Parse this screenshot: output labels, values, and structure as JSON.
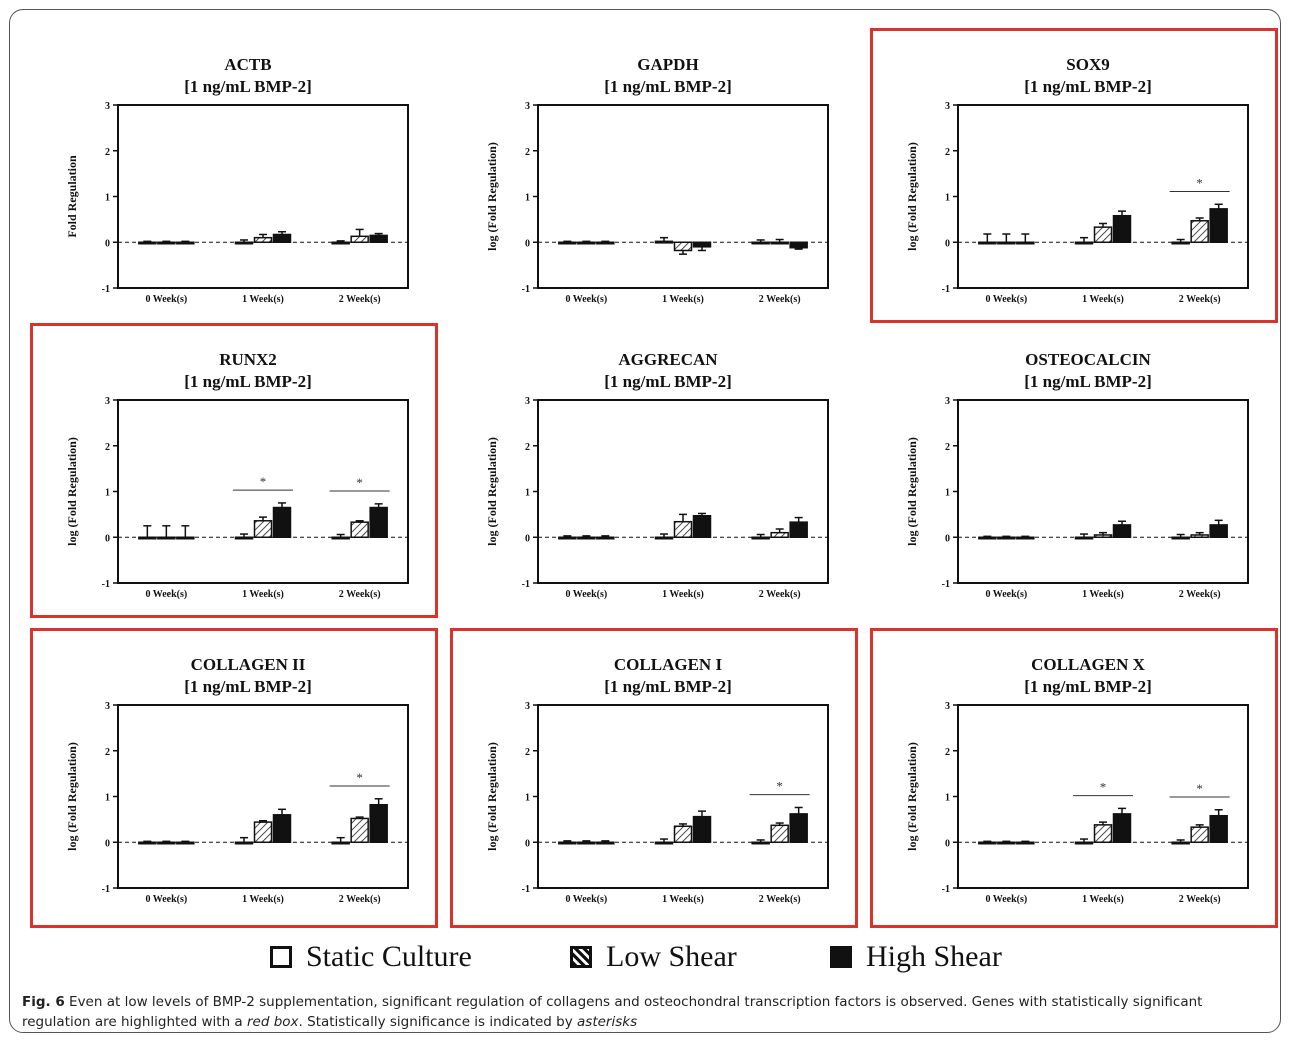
{
  "legend": {
    "items": [
      {
        "label": "Static Culture",
        "fill": "white"
      },
      {
        "label": "Low Shear",
        "fill": "hatch"
      },
      {
        "label": "High Shear",
        "fill": "black"
      }
    ]
  },
  "caption": {
    "fig_label": "Fig. 6",
    "text_1": " Even at low levels of BMP-2 supplementation, significant regulation of collagens and osteochondral transcription factors is observed. Genes with statistically significant regulation are highlighted with a ",
    "emph_1": "red box",
    "text_2": ". Statistically significance is indicated by ",
    "emph_2": "asterisks"
  },
  "colors": {
    "highlight": "#d9332b",
    "static": "#ffffff",
    "high": "#111111",
    "hatch": "#444444"
  },
  "chart_data": [
    {
      "type": "bar",
      "title": "ACTB",
      "subtitle": "[1 ng/mL BMP-2]",
      "ylabel": "Fold Regulation",
      "ylim": [
        -1,
        3
      ],
      "yticks": [
        -1,
        0,
        1,
        2,
        3
      ],
      "categories": [
        "0 Week(s)",
        "1 Week(s)",
        "2 Week(s)"
      ],
      "highlighted": false,
      "series": [
        {
          "name": "Static Culture",
          "values": [
            0,
            0,
            0
          ],
          "errors": [
            0.02,
            0.05,
            0.03
          ]
        },
        {
          "name": "Low Shear",
          "values": [
            0,
            0.1,
            0.13
          ],
          "errors": [
            0.02,
            0.07,
            0.15
          ]
        },
        {
          "name": "High Shear",
          "values": [
            0,
            0.17,
            0.15
          ],
          "errors": [
            0.02,
            0.06,
            0.04
          ]
        }
      ],
      "significance": []
    },
    {
      "type": "bar",
      "title": "GAPDH",
      "subtitle": "[1 ng/mL BMP-2]",
      "ylabel": "log (Fold Regulation)",
      "ylim": [
        -1,
        3
      ],
      "yticks": [
        -1,
        0,
        1,
        2,
        3
      ],
      "categories": [
        "0 Week(s)",
        "1 Week(s)",
        "2 Week(s)"
      ],
      "highlighted": false,
      "series": [
        {
          "name": "Static Culture",
          "values": [
            0,
            0.02,
            0
          ],
          "errors": [
            0.02,
            0.08,
            0.05
          ]
        },
        {
          "name": "Low Shear",
          "values": [
            0,
            -0.18,
            0
          ],
          "errors": [
            0.02,
            0.08,
            0.06
          ]
        },
        {
          "name": "High Shear",
          "values": [
            0,
            -0.1,
            -0.12
          ],
          "errors": [
            0.02,
            0.08,
            0.03
          ]
        }
      ],
      "significance": []
    },
    {
      "type": "bar",
      "title": "SOX9",
      "subtitle": "[1 ng/mL BMP-2]",
      "ylabel": "log (Fold Regulation)",
      "ylim": [
        -1,
        3
      ],
      "yticks": [
        -1,
        0,
        1,
        2,
        3
      ],
      "categories": [
        "0 Week(s)",
        "1 Week(s)",
        "2 Week(s)"
      ],
      "highlighted": true,
      "series": [
        {
          "name": "Static Culture",
          "values": [
            0,
            0,
            0
          ],
          "errors": [
            0.18,
            0.1,
            0.06
          ]
        },
        {
          "name": "Low Shear",
          "values": [
            0,
            0.33,
            0.47
          ],
          "errors": [
            0.18,
            0.08,
            0.06
          ]
        },
        {
          "name": "High Shear",
          "values": [
            0,
            0.58,
            0.73
          ],
          "errors": [
            0.18,
            0.1,
            0.1
          ]
        }
      ],
      "significance": [
        {
          "category": "2 Week(s)",
          "label": "*"
        }
      ]
    },
    {
      "type": "bar",
      "title": "RUNX2",
      "subtitle": "[1 ng/mL BMP-2]",
      "ylabel": "log (Fold Regulation)",
      "ylim": [
        -1,
        3
      ],
      "yticks": [
        -1,
        0,
        1,
        2,
        3
      ],
      "categories": [
        "0 Week(s)",
        "1 Week(s)",
        "2 Week(s)"
      ],
      "highlighted": true,
      "series": [
        {
          "name": "Static Culture",
          "values": [
            0,
            0,
            0
          ],
          "errors": [
            0.25,
            0.07,
            0.06
          ]
        },
        {
          "name": "Low Shear",
          "values": [
            0,
            0.36,
            0.33
          ],
          "errors": [
            0.25,
            0.08,
            0.03
          ]
        },
        {
          "name": "High Shear",
          "values": [
            0,
            0.65,
            0.65
          ],
          "errors": [
            0.25,
            0.1,
            0.08
          ]
        }
      ],
      "significance": [
        {
          "category": "1 Week(s)",
          "label": "*"
        },
        {
          "category": "2 Week(s)",
          "label": "*"
        }
      ]
    },
    {
      "type": "bar",
      "title": "AGGRECAN",
      "subtitle": "[1 ng/mL BMP-2]",
      "ylabel": "log (Fold Regulation)",
      "ylim": [
        -1,
        3
      ],
      "yticks": [
        -1,
        0,
        1,
        2,
        3
      ],
      "categories": [
        "0 Week(s)",
        "1 Week(s)",
        "2 Week(s)"
      ],
      "highlighted": false,
      "series": [
        {
          "name": "Static Culture",
          "values": [
            0,
            0,
            0
          ],
          "errors": [
            0.03,
            0.07,
            0.06
          ]
        },
        {
          "name": "Low Shear",
          "values": [
            0,
            0.34,
            0.1
          ],
          "errors": [
            0.03,
            0.16,
            0.08
          ]
        },
        {
          "name": "High Shear",
          "values": [
            0,
            0.47,
            0.33
          ],
          "errors": [
            0.03,
            0.05,
            0.1
          ]
        }
      ],
      "significance": []
    },
    {
      "type": "bar",
      "title": "OSTEOCALCIN",
      "subtitle": "[1 ng/mL BMP-2]",
      "ylabel": "log (Fold Regulation)",
      "ylim": [
        -1,
        3
      ],
      "yticks": [
        -1,
        0,
        1,
        2,
        3
      ],
      "categories": [
        "0 Week(s)",
        "1 Week(s)",
        "2 Week(s)"
      ],
      "highlighted": false,
      "series": [
        {
          "name": "Static Culture",
          "values": [
            0,
            0,
            0
          ],
          "errors": [
            0.02,
            0.07,
            0.06
          ]
        },
        {
          "name": "Low Shear",
          "values": [
            0,
            0.05,
            0.05
          ],
          "errors": [
            0.02,
            0.05,
            0.05
          ]
        },
        {
          "name": "High Shear",
          "values": [
            0,
            0.27,
            0.27
          ],
          "errors": [
            0.02,
            0.08,
            0.1
          ]
        }
      ],
      "significance": []
    },
    {
      "type": "bar",
      "title": "COLLAGEN II",
      "subtitle": "[1 ng/mL BMP-2]",
      "ylabel": "log (Fold Regulation)",
      "ylim": [
        -1,
        3
      ],
      "yticks": [
        -1,
        0,
        1,
        2,
        3
      ],
      "categories": [
        "0 Week(s)",
        "1 Week(s)",
        "2 Week(s)"
      ],
      "highlighted": true,
      "series": [
        {
          "name": "Static Culture",
          "values": [
            0,
            0,
            0
          ],
          "errors": [
            0.02,
            0.1,
            0.1
          ]
        },
        {
          "name": "Low Shear",
          "values": [
            0,
            0.44,
            0.52
          ],
          "errors": [
            0.02,
            0.03,
            0.03
          ]
        },
        {
          "name": "High Shear",
          "values": [
            0,
            0.6,
            0.82
          ],
          "errors": [
            0.02,
            0.12,
            0.13
          ]
        }
      ],
      "significance": [
        {
          "category": "2 Week(s)",
          "label": "*"
        }
      ]
    },
    {
      "type": "bar",
      "title": "COLLAGEN I",
      "subtitle": "[1 ng/mL BMP-2]",
      "ylabel": "log (Fold Regulation)",
      "ylim": [
        -1,
        3
      ],
      "yticks": [
        -1,
        0,
        1,
        2,
        3
      ],
      "categories": [
        "0 Week(s)",
        "1 Week(s)",
        "2 Week(s)"
      ],
      "highlighted": true,
      "series": [
        {
          "name": "Static Culture",
          "values": [
            0,
            0,
            0
          ],
          "errors": [
            0.03,
            0.07,
            0.05
          ]
        },
        {
          "name": "Low Shear",
          "values": [
            0,
            0.35,
            0.37
          ],
          "errors": [
            0.03,
            0.05,
            0.05
          ]
        },
        {
          "name": "High Shear",
          "values": [
            0,
            0.56,
            0.62
          ],
          "errors": [
            0.03,
            0.12,
            0.14
          ]
        }
      ],
      "significance": [
        {
          "category": "2 Week(s)",
          "label": "*"
        }
      ]
    },
    {
      "type": "bar",
      "title": "COLLAGEN X",
      "subtitle": "[1 ng/mL BMP-2]",
      "ylabel": "log (Fold Regulation)",
      "ylim": [
        -1,
        3
      ],
      "yticks": [
        -1,
        0,
        1,
        2,
        3
      ],
      "categories": [
        "0 Week(s)",
        "1 Week(s)",
        "2 Week(s)"
      ],
      "highlighted": true,
      "series": [
        {
          "name": "Static Culture",
          "values": [
            0,
            0,
            0
          ],
          "errors": [
            0.02,
            0.07,
            0.05
          ]
        },
        {
          "name": "Low Shear",
          "values": [
            0,
            0.38,
            0.33
          ],
          "errors": [
            0.02,
            0.06,
            0.05
          ]
        },
        {
          "name": "High Shear",
          "values": [
            0,
            0.62,
            0.58
          ],
          "errors": [
            0.02,
            0.12,
            0.13
          ]
        }
      ],
      "significance": [
        {
          "category": "1 Week(s)",
          "label": "*"
        },
        {
          "category": "2 Week(s)",
          "label": "*"
        }
      ]
    }
  ]
}
